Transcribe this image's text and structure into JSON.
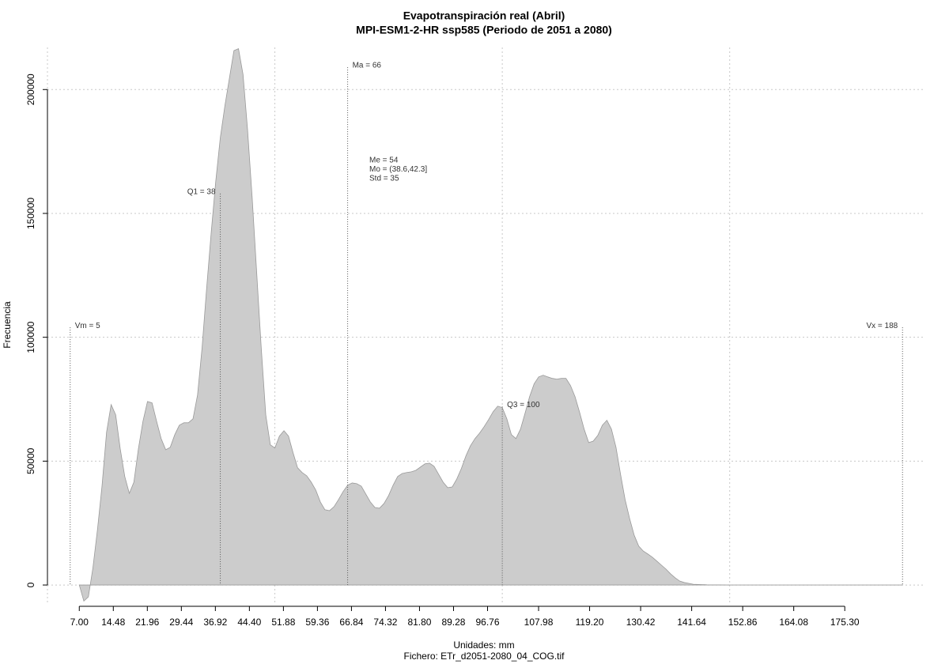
{
  "chart_data": {
    "type": "area",
    "title": "Evapotranspiración real (Abril)",
    "subtitle": "MPI-ESM1-2-HR ssp585 (Periodo de 2051 a 2080)",
    "xlabel": "Unidades: mm",
    "caption": "Fichero: ETr_d2051-2080_04_COG.tif",
    "ylabel": "Frecuencia",
    "xlim": [
      0,
      193
    ],
    "ylim": [
      -7000,
      217000
    ],
    "xticks": [
      {
        "value": 7,
        "label": "7.00"
      },
      14.48,
      21.96,
      29.44,
      36.92,
      {
        "value": 44.4,
        "label": "44.40"
      },
      51.88,
      59.36,
      66.84,
      74.32,
      {
        "value": 81.8,
        "label": "81.80"
      },
      89.28,
      96.76,
      107.98,
      {
        "value": 119.2,
        "label": "119.20"
      },
      130.42,
      141.64,
      152.86,
      164.08,
      {
        "value": 175.3,
        "label": "175.30"
      }
    ],
    "yticks": [
      0,
      50000,
      100000,
      150000,
      200000
    ],
    "xgrid": [
      0,
      50,
      100,
      150
    ],
    "grid": true,
    "color": "#cccccc",
    "series": [
      {
        "x": [
          7,
          8,
          9,
          10,
          11,
          12,
          13,
          14,
          15,
          16,
          17,
          18,
          19,
          20,
          21,
          22,
          23,
          24,
          25,
          26,
          27,
          28,
          29,
          30,
          31,
          32,
          33,
          34,
          35,
          36,
          37,
          38,
          39,
          40,
          41,
          42,
          43,
          44,
          45,
          46,
          47,
          48,
          49,
          50,
          51,
          52,
          53,
          54,
          55,
          56,
          57,
          58,
          59,
          60,
          61,
          62,
          63,
          64,
          65,
          66,
          67,
          68,
          69,
          70,
          71,
          72,
          73,
          74,
          75,
          76,
          77,
          78,
          79,
          80,
          81,
          82,
          83,
          84,
          85,
          86,
          87,
          88,
          89,
          90,
          91,
          92,
          93,
          94,
          95,
          96,
          97,
          98,
          99,
          100,
          101,
          102,
          103,
          104,
          105,
          106,
          107,
          108,
          109,
          110,
          111,
          112,
          113,
          114,
          115,
          116,
          117,
          118,
          119,
          120,
          121,
          122,
          123,
          124,
          125,
          126,
          127,
          128,
          129,
          130,
          131,
          132,
          133,
          134,
          135,
          136,
          137,
          138,
          139,
          140,
          142,
          145,
          150,
          160,
          170,
          180,
          188
        ],
        "values": [
          0,
          -6500,
          -4800,
          7000,
          22400,
          40000,
          61700,
          72800,
          68700,
          55000,
          43800,
          37000,
          41500,
          55000,
          66100,
          74100,
          73500,
          66100,
          59100,
          54600,
          55600,
          60700,
          64500,
          65500,
          65500,
          67100,
          76700,
          95800,
          119800,
          142200,
          162900,
          180500,
          193300,
          204500,
          215700,
          216500,
          206100,
          183700,
          156600,
          126200,
          95800,
          68700,
          56600,
          55300,
          60100,
          62300,
          60100,
          53400,
          47300,
          45400,
          44100,
          41500,
          38300,
          33500,
          30400,
          30000,
          31600,
          34500,
          37700,
          40300,
          41200,
          40900,
          39900,
          36700,
          33500,
          31300,
          31000,
          32900,
          36100,
          40300,
          43800,
          45000,
          45400,
          45700,
          46300,
          47600,
          48900,
          49200,
          47900,
          44700,
          41500,
          39300,
          39600,
          42800,
          47000,
          52100,
          56200,
          59100,
          61300,
          63900,
          66800,
          70000,
          72200,
          71600,
          67100,
          60700,
          59100,
          62900,
          69300,
          76000,
          81200,
          84000,
          84700,
          84000,
          83400,
          83100,
          83400,
          83400,
          80500,
          76000,
          69700,
          62900,
          57500,
          58100,
          60400,
          64500,
          66500,
          62900,
          55600,
          44700,
          34500,
          26800,
          20100,
          15700,
          13700,
          12500,
          11200,
          9600,
          8000,
          6400,
          4500,
          2900,
          1600,
          1000,
          300,
          100,
          0,
          0,
          0,
          0,
          0
        ]
      }
    ],
    "markers": [
      {
        "label": "Vm = 5",
        "x": 5,
        "y": 104000,
        "side": "right"
      },
      {
        "label": "Q1 = 38",
        "x": 38,
        "y": 158000,
        "side": "left"
      },
      {
        "label": "Ma = 66",
        "x": 66,
        "y": 209000,
        "side": "right"
      },
      {
        "label": "Q3 = 100",
        "x": 100,
        "y": 72000,
        "side": "right"
      },
      {
        "label": "Vx = 188",
        "x": 188,
        "y": 104000,
        "side": "left"
      }
    ],
    "stats": [
      "Me = 54",
      "Mo = (38.6,42.3]",
      "Std = 35"
    ]
  }
}
